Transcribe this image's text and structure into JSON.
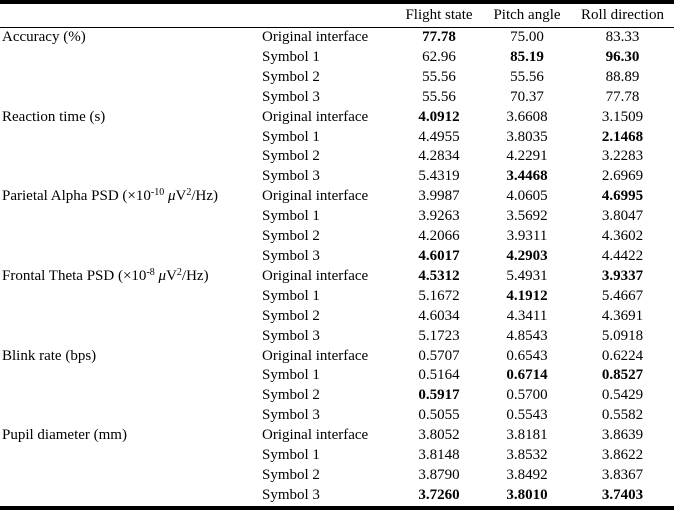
{
  "header": {
    "columns": [
      "Flight state",
      "Pitch angle",
      "Roll direction"
    ]
  },
  "groups": [
    {
      "metric_parts": [
        {
          "t": "Accuracy (%)"
        }
      ],
      "rows": [
        {
          "label": "Original interface",
          "values": [
            {
              "t": "77.78",
              "b": true
            },
            {
              "t": "75.00"
            },
            {
              "t": "83.33"
            }
          ]
        },
        {
          "label": "Symbol 1",
          "values": [
            {
              "t": "62.96"
            },
            {
              "t": "85.19",
              "b": true
            },
            {
              "t": "96.30",
              "b": true
            }
          ]
        },
        {
          "label": "Symbol 2",
          "values": [
            {
              "t": "55.56"
            },
            {
              "t": "55.56"
            },
            {
              "t": "88.89"
            }
          ]
        },
        {
          "label": "Symbol 3",
          "values": [
            {
              "t": "55.56"
            },
            {
              "t": "70.37"
            },
            {
              "t": "77.78"
            }
          ]
        }
      ]
    },
    {
      "metric_parts": [
        {
          "t": "Reaction time (s)"
        }
      ],
      "rows": [
        {
          "label": "Original interface",
          "values": [
            {
              "t": "4.0912",
              "b": true
            },
            {
              "t": "3.6608"
            },
            {
              "t": "3.1509"
            }
          ]
        },
        {
          "label": "Symbol 1",
          "values": [
            {
              "t": "4.4955"
            },
            {
              "t": "3.8035"
            },
            {
              "t": "2.1468",
              "b": true
            }
          ]
        },
        {
          "label": "Symbol 2",
          "values": [
            {
              "t": "4.2834"
            },
            {
              "t": "4.2291"
            },
            {
              "t": "3.2283"
            }
          ]
        },
        {
          "label": "Symbol 3",
          "values": [
            {
              "t": "5.4319"
            },
            {
              "t": "3.4468",
              "b": true
            },
            {
              "t": "2.6969"
            }
          ]
        }
      ]
    },
    {
      "metric_parts": [
        {
          "t": "Parietal Alpha PSD (×10"
        },
        {
          "t": "-10",
          "sup": true
        },
        {
          "t": " "
        },
        {
          "t": "μ",
          "i": true
        },
        {
          "t": "V"
        },
        {
          "t": "2",
          "sup": true
        },
        {
          "t": "/Hz)"
        }
      ],
      "rows": [
        {
          "label": "Original interface",
          "values": [
            {
              "t": "3.9987"
            },
            {
              "t": "4.0605"
            },
            {
              "t": "4.6995",
              "b": true
            }
          ]
        },
        {
          "label": "Symbol 1",
          "values": [
            {
              "t": "3.9263"
            },
            {
              "t": "3.5692"
            },
            {
              "t": "3.8047"
            }
          ]
        },
        {
          "label": "Symbol 2",
          "values": [
            {
              "t": "4.2066"
            },
            {
              "t": "3.9311"
            },
            {
              "t": "4.3602"
            }
          ]
        },
        {
          "label": "Symbol 3",
          "values": [
            {
              "t": "4.6017",
              "b": true
            },
            {
              "t": "4.2903",
              "b": true
            },
            {
              "t": "4.4422"
            }
          ]
        }
      ]
    },
    {
      "metric_parts": [
        {
          "t": "Frontal Theta PSD (×10"
        },
        {
          "t": "-8",
          "sup": true
        },
        {
          "t": " "
        },
        {
          "t": "μ",
          "i": true
        },
        {
          "t": "V"
        },
        {
          "t": "2",
          "sup": true
        },
        {
          "t": "/Hz)"
        }
      ],
      "rows": [
        {
          "label": "Original interface",
          "values": [
            {
              "t": "4.5312",
              "b": true
            },
            {
              "t": "5.4931"
            },
            {
              "t": "3.9337",
              "b": true
            }
          ]
        },
        {
          "label": "Symbol 1",
          "values": [
            {
              "t": "5.1672"
            },
            {
              "t": "4.1912",
              "b": true
            },
            {
              "t": "5.4667"
            }
          ]
        },
        {
          "label": "Symbol 2",
          "values": [
            {
              "t": "4.6034"
            },
            {
              "t": "4.3411"
            },
            {
              "t": "4.3691"
            }
          ]
        },
        {
          "label": "Symbol 3",
          "values": [
            {
              "t": "5.1723"
            },
            {
              "t": "4.8543"
            },
            {
              "t": "5.0918"
            }
          ]
        }
      ]
    },
    {
      "metric_parts": [
        {
          "t": "Blink rate (bps)"
        }
      ],
      "rows": [
        {
          "label": "Original interface",
          "values": [
            {
              "t": "0.5707"
            },
            {
              "t": "0.6543"
            },
            {
              "t": "0.6224"
            }
          ]
        },
        {
          "label": "Symbol 1",
          "values": [
            {
              "t": "0.5164"
            },
            {
              "t": "0.6714",
              "b": true
            },
            {
              "t": "0.8527",
              "b": true
            }
          ]
        },
        {
          "label": "Symbol 2",
          "values": [
            {
              "t": "0.5917",
              "b": true
            },
            {
              "t": "0.5700"
            },
            {
              "t": "0.5429"
            }
          ]
        },
        {
          "label": "Symbol 3",
          "values": [
            {
              "t": "0.5055"
            },
            {
              "t": "0.5543"
            },
            {
              "t": "0.5582"
            }
          ]
        }
      ]
    },
    {
      "metric_parts": [
        {
          "t": "Pupil diameter (mm)"
        }
      ],
      "rows": [
        {
          "label": "Original interface",
          "values": [
            {
              "t": "3.8052"
            },
            {
              "t": "3.8181"
            },
            {
              "t": "3.8639"
            }
          ]
        },
        {
          "label": "Symbol 1",
          "values": [
            {
              "t": "3.8148"
            },
            {
              "t": "3.8532"
            },
            {
              "t": "3.8622"
            }
          ]
        },
        {
          "label": "Symbol 2",
          "values": [
            {
              "t": "3.8790"
            },
            {
              "t": "3.8492"
            },
            {
              "t": "3.8367"
            }
          ]
        },
        {
          "label": "Symbol 3",
          "values": [
            {
              "t": "3.7260",
              "b": true
            },
            {
              "t": "3.8010",
              "b": true
            },
            {
              "t": "3.7403",
              "b": true
            }
          ]
        }
      ]
    }
  ]
}
